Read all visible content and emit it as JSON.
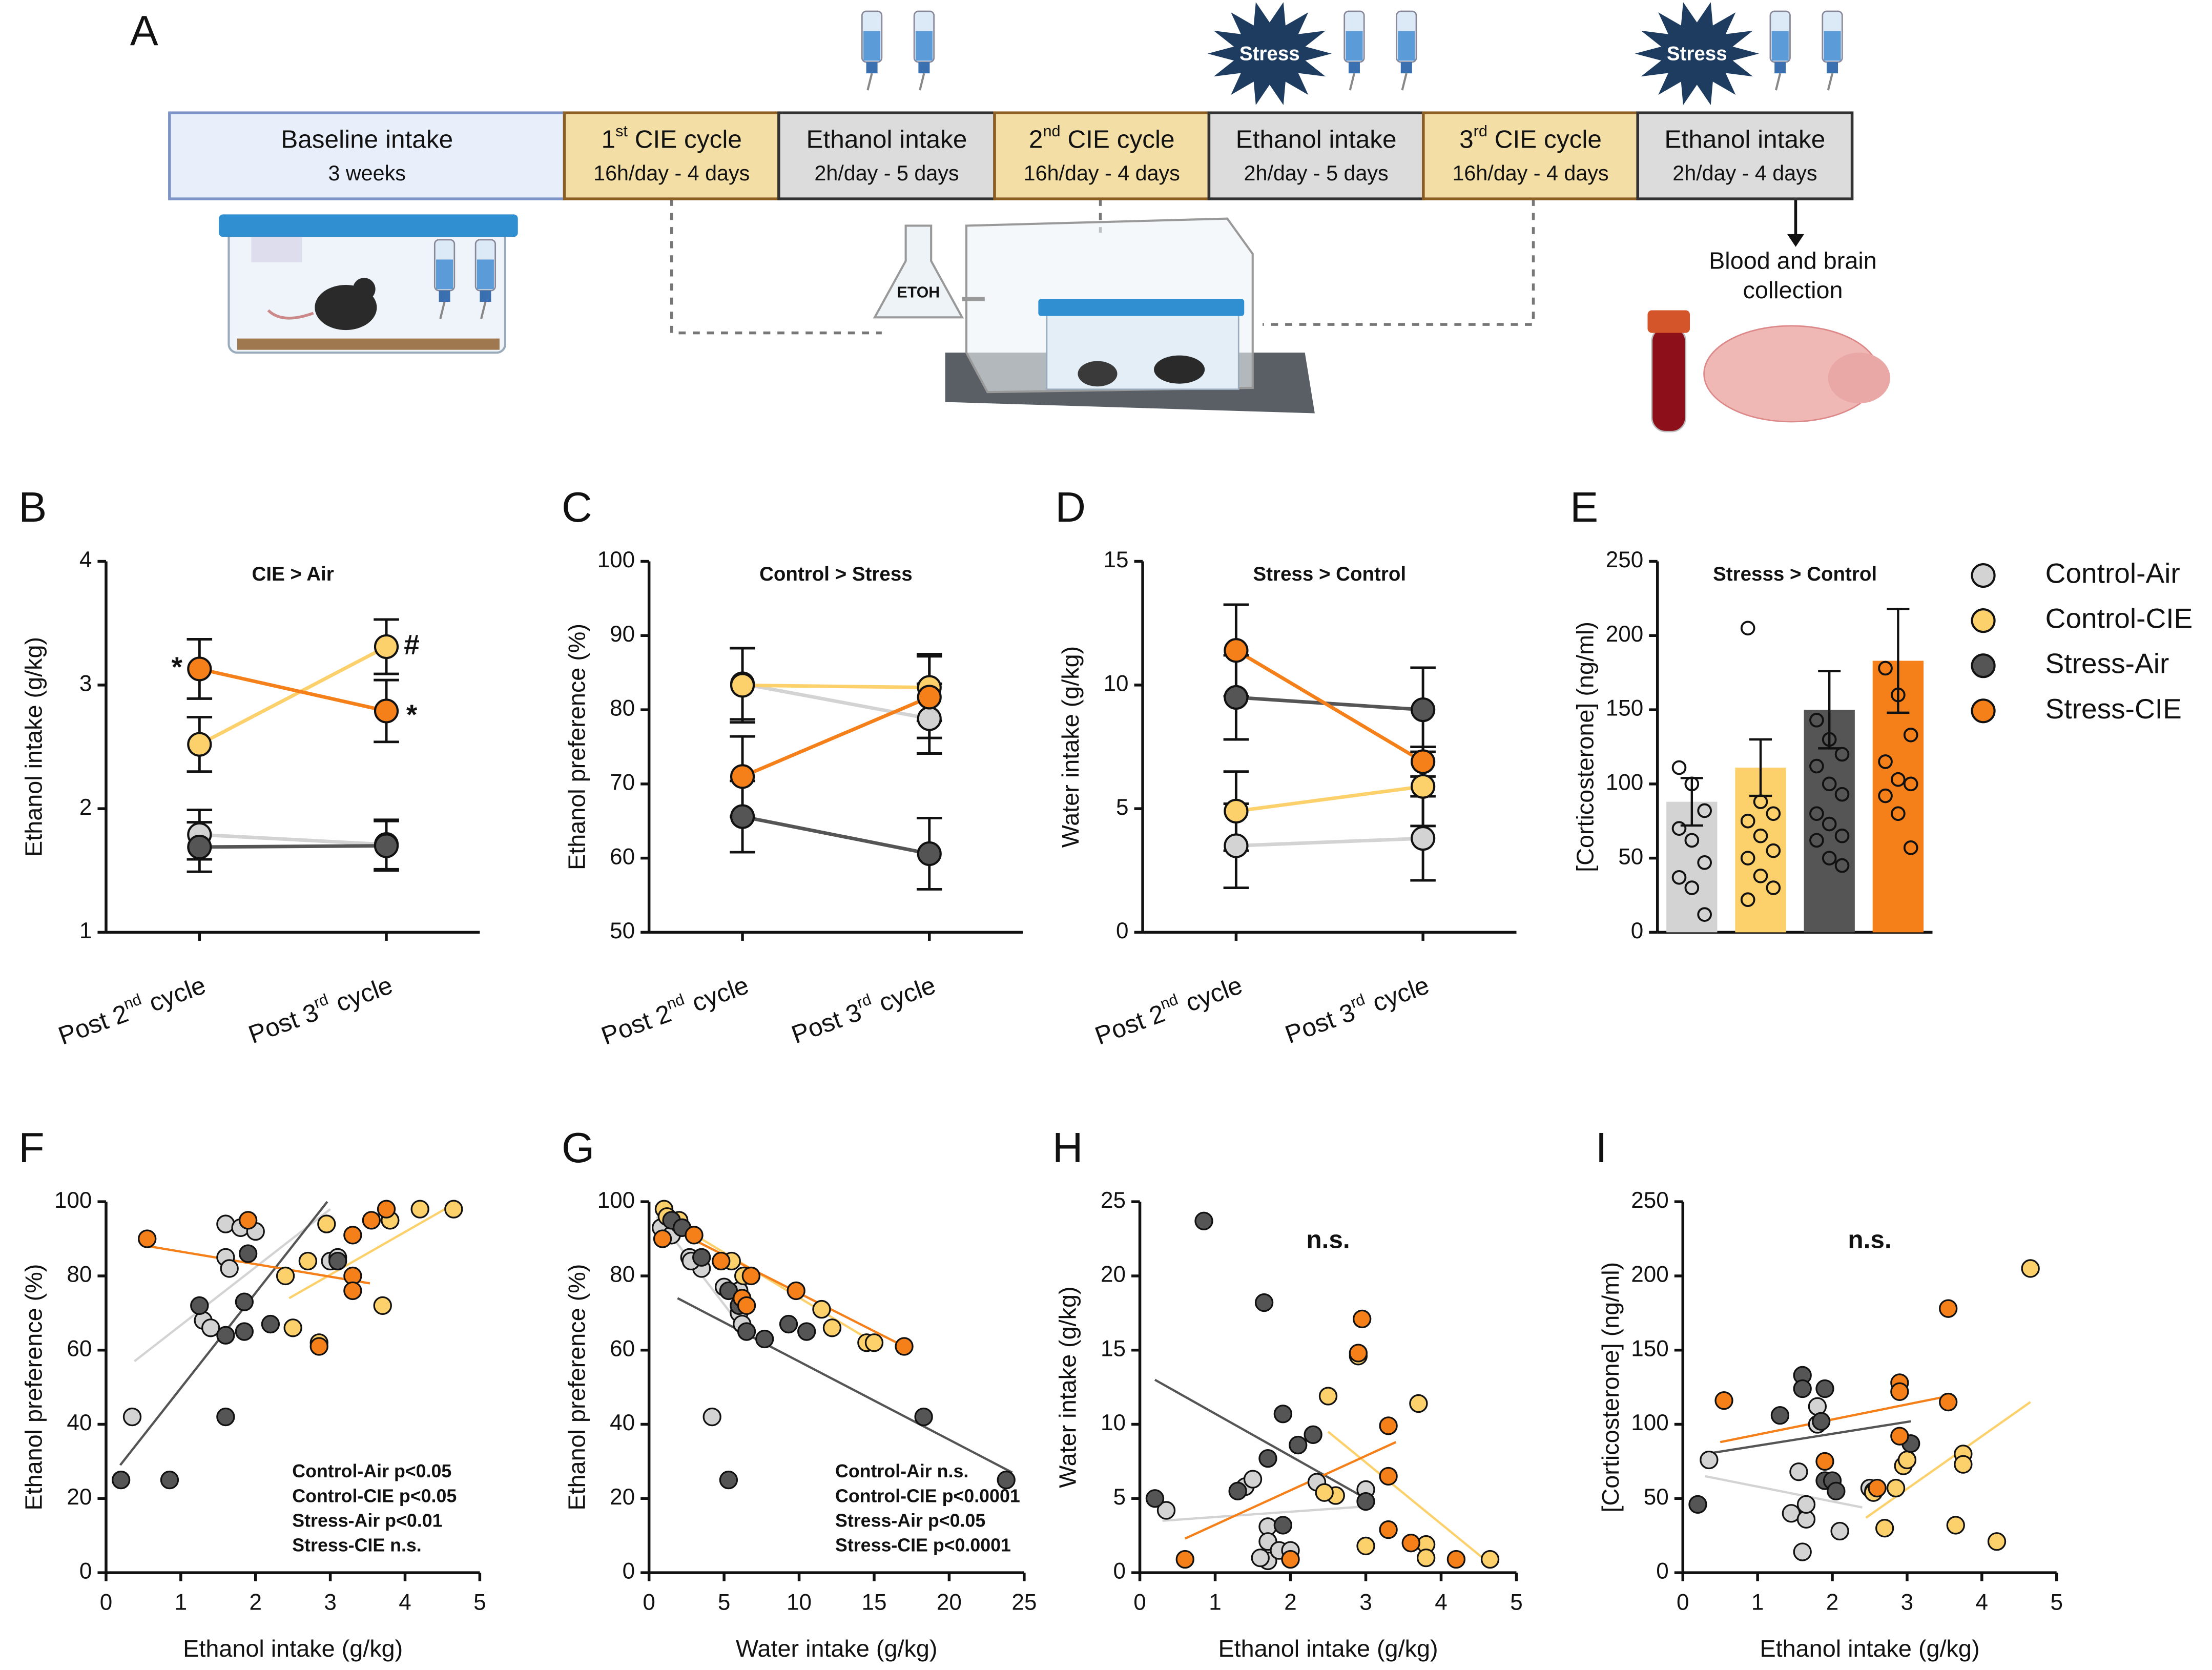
{
  "panel_a": {
    "label": "A",
    "boxes": [
      {
        "title": "Baseline intake",
        "sub": "3 weeks"
      },
      {
        "title": [
          "1",
          "st",
          " CIE cycle"
        ],
        "sub": "16h/day - 4 days"
      },
      {
        "title": "Ethanol intake",
        "sub": "2h/day - 5 days"
      },
      {
        "title": [
          "2",
          "nd",
          " CIE cycle"
        ],
        "sub": "16h/day - 4 days"
      },
      {
        "title": "Ethanol intake",
        "sub": "2h/day - 5 days"
      },
      {
        "title": [
          "3",
          "rd",
          " CIE cycle"
        ],
        "sub": "16h/day - 4 days"
      },
      {
        "title": "Ethanol intake",
        "sub": "2h/day - 4 days"
      }
    ],
    "stress": [
      "Stress",
      "Stress"
    ],
    "etoh": "ETOH",
    "collection": [
      "Blood and brain",
      "collection"
    ]
  },
  "chart_data": [
    {
      "type": "line",
      "panel": "B",
      "title": "CIE > Air",
      "ylabel": "Ethanol intake (g/kg)",
      "categories": [
        [
          "Post 2",
          "nd",
          " cycle"
        ],
        [
          "Post 3",
          "rd",
          " cycle"
        ]
      ],
      "ylim": [
        1,
        4
      ],
      "yticks": [
        1,
        2,
        3,
        4
      ],
      "annotations": [
        "*",
        "#",
        "*"
      ],
      "series": [
        {
          "name": "Control-Air",
          "color": "#d3d3d3",
          "values": [
            1.79,
            1.71
          ],
          "errors": [
            0.2,
            0.2
          ]
        },
        {
          "name": "Control-CIE",
          "color": "#fcd16c",
          "values": [
            2.52,
            3.31
          ],
          "errors": [
            0.22,
            0.22
          ]
        },
        {
          "name": "Stress-Air",
          "color": "#555555",
          "values": [
            1.69,
            1.7
          ],
          "errors": [
            0.2,
            0.2
          ]
        },
        {
          "name": "Stress-CIE",
          "color": "#f57f18",
          "values": [
            3.13,
            2.79
          ],
          "errors": [
            0.24,
            0.25
          ]
        }
      ]
    },
    {
      "type": "line",
      "panel": "C",
      "title": "Control > Stress",
      "ylabel": "Ethanol preference (%)",
      "categories": [
        [
          "Post 2",
          "nd",
          " cycle"
        ],
        [
          "Post 3",
          "rd",
          " cycle"
        ]
      ],
      "ylim": [
        50,
        100
      ],
      "yticks": [
        50,
        60,
        70,
        80,
        90,
        100
      ],
      "series": [
        {
          "name": "Control-Air",
          "color": "#d3d3d3",
          "values": [
            83.5,
            78.8
          ],
          "errors": [
            4.8,
            4.7
          ]
        },
        {
          "name": "Control-CIE",
          "color": "#fcd16c",
          "values": [
            83.3,
            83
          ],
          "errors": [
            5,
            4.5
          ]
        },
        {
          "name": "Stress-Air",
          "color": "#555555",
          "values": [
            65.6,
            60.6
          ],
          "errors": [
            4.8,
            4.8
          ]
        },
        {
          "name": "Stress-CIE",
          "color": "#f57f18",
          "values": [
            71,
            81.7
          ],
          "errors": [
            5.4,
            5.5
          ]
        }
      ]
    },
    {
      "type": "line",
      "panel": "D",
      "title": "Stress > Control",
      "ylabel": "Water intake (g/kg)",
      "categories": [
        [
          "Post 2",
          "nd",
          " cycle"
        ],
        [
          "Post 3",
          "rd",
          " cycle"
        ]
      ],
      "ylim": [
        0,
        15
      ],
      "yticks": [
        0,
        5,
        10,
        15
      ],
      "series": [
        {
          "name": "Control-Air",
          "color": "#d3d3d3",
          "values": [
            3.5,
            3.8
          ],
          "errors": [
            1.7,
            1.7
          ]
        },
        {
          "name": "Control-CIE",
          "color": "#fcd16c",
          "values": [
            4.9,
            5.9
          ],
          "errors": [
            1.6,
            1.6
          ]
        },
        {
          "name": "Stress-Air",
          "color": "#555555",
          "values": [
            9.5,
            9
          ],
          "errors": [
            1.7,
            1.7
          ]
        },
        {
          "name": "Stress-CIE",
          "color": "#f57f18",
          "values": [
            11.4,
            6.9
          ],
          "errors": [
            1.85,
            0.6
          ]
        }
      ]
    },
    {
      "type": "bar",
      "panel": "E",
      "title": "Stresss > Control",
      "ylabel": "[Corticosterone] (ng/ml)",
      "ylim": [
        0,
        250
      ],
      "yticks": [
        0,
        50,
        100,
        150,
        200,
        250
      ],
      "legend": "right",
      "series": [
        {
          "name": "Control-Air",
          "color": "#d3d3d3",
          "value": 88,
          "error": 16,
          "points": [
            111,
            100,
            82,
            70,
            62,
            47,
            37,
            30,
            12
          ]
        },
        {
          "name": "Control-CIE",
          "color": "#fcd16c",
          "value": 111,
          "error": 19,
          "points": [
            205,
            88,
            80,
            75,
            65,
            55,
            50,
            38,
            30,
            22
          ]
        },
        {
          "name": "Stress-Air",
          "color": "#555555",
          "value": 150,
          "error": 26,
          "points": [
            143,
            130,
            120,
            112,
            100,
            93,
            80,
            73,
            65,
            62,
            50,
            45
          ]
        },
        {
          "name": "Stress-CIE",
          "color": "#f57f18",
          "value": 183,
          "error": 35,
          "points": [
            178,
            160,
            133,
            115,
            103,
            100,
            92,
            80,
            57
          ]
        }
      ]
    },
    {
      "type": "scatter",
      "panel": "F",
      "xlabel": "Ethanol intake (g/kg)",
      "ylabel": "Ethanol preference (%)",
      "xlim": [
        0,
        5
      ],
      "xticks": [
        0,
        1,
        2,
        3,
        4,
        5
      ],
      "ylim": [
        0,
        100
      ],
      "yticks": [
        0,
        20,
        40,
        60,
        80,
        100
      ],
      "annotations": [
        "Control-Air  p<0.05",
        "Control-CIE p<0.05",
        "Stress-Air p<0.01",
        "Stress-CIE n.s."
      ],
      "series": [
        {
          "name": "Control-Air",
          "color": "#d3d3d3",
          "x": [
            1.6,
            1.8,
            2.0,
            1.6,
            1.65,
            1.3,
            1.4,
            3.0,
            3.1,
            0.35
          ],
          "y": [
            94,
            93,
            92,
            85,
            82,
            68,
            66,
            84,
            85,
            42
          ],
          "fit_x": [
            0.38,
            3.0
          ],
          "fit_y": [
            57,
            98
          ]
        },
        {
          "name": "Control-CIE",
          "color": "#fcd16c",
          "x": [
            2.95,
            3.8,
            4.2,
            4.65,
            2.7,
            2.4,
            2.5,
            2.85,
            3.7
          ],
          "y": [
            94,
            95,
            98,
            98,
            84,
            80,
            66,
            62,
            72
          ],
          "fit_x": [
            2.45,
            4.62
          ],
          "fit_y": [
            74,
            99
          ]
        },
        {
          "name": "Stress-Air",
          "color": "#555555",
          "x": [
            1.9,
            1.25,
            1.6,
            1.85,
            1.85,
            2.2,
            3.1,
            1.6,
            0.85,
            0.2
          ],
          "y": [
            86,
            72,
            64,
            65,
            73,
            67,
            84,
            42,
            25,
            25
          ],
          "fit_x": [
            0.19,
            2.96
          ],
          "fit_y": [
            29,
            100
          ]
        },
        {
          "name": "Stress-CIE",
          "color": "#f57f18",
          "x": [
            0.55,
            1.9,
            2.85,
            3.3,
            3.55,
            3.3,
            3.3,
            3.75
          ],
          "y": [
            90,
            95,
            61,
            91,
            95,
            80,
            76,
            98
          ],
          "fit_x": [
            0.57,
            3.53
          ],
          "fit_y": [
            88,
            78
          ]
        }
      ]
    },
    {
      "type": "scatter",
      "panel": "G",
      "xlabel": "Water intake (g/kg)",
      "ylabel": "Ethanol preference (%)",
      "xlim": [
        0,
        25
      ],
      "xticks": [
        0,
        5,
        10,
        15,
        20,
        25
      ],
      "ylim": [
        0,
        100
      ],
      "yticks": [
        0,
        20,
        40,
        60,
        80,
        100
      ],
      "annotations": [
        "Control-Air  n.s.",
        "Control-CIE p<0.0001",
        "Stress-Air p<0.05",
        "Stress-CIE p<0.0001"
      ],
      "series": [
        {
          "name": "Control-Air",
          "color": "#d3d3d3",
          "x": [
            0.8,
            1.5,
            2.0,
            2.7,
            3.5,
            5.0,
            6.0,
            6.2,
            6.0,
            4.2,
            2.8
          ],
          "y": [
            93,
            91,
            94,
            85,
            82,
            77,
            70,
            67,
            76,
            42,
            84
          ],
          "fit_x": [
            0.5,
            6.2
          ],
          "fit_y": [
            96,
            66
          ]
        },
        {
          "name": "Control-CIE",
          "color": "#fcd16c",
          "x": [
            1.0,
            1.2,
            2.0,
            5.5,
            6.3,
            11.5,
            12.2,
            14.5,
            15.0
          ],
          "y": [
            98,
            96,
            95,
            84,
            80,
            71,
            66,
            62,
            62
          ],
          "fit_x": [
            1,
            15
          ],
          "fit_y": [
            96,
            62
          ]
        },
        {
          "name": "Stress-Air",
          "color": "#555555",
          "x": [
            1.5,
            2.2,
            3.5,
            5.3,
            6.0,
            6.5,
            7.7,
            9.3,
            10.5,
            18.3,
            23.8,
            5.3
          ],
          "y": [
            95,
            93,
            85,
            76,
            72,
            65,
            63,
            67,
            65,
            42,
            25,
            25
          ],
          "fit_x": [
            1.9,
            24.2
          ],
          "fit_y": [
            74,
            27
          ]
        },
        {
          "name": "Stress-CIE",
          "color": "#f57f18",
          "x": [
            0.9,
            3.0,
            4.8,
            6.2,
            6.5,
            6.8,
            9.8,
            17
          ],
          "y": [
            90,
            91,
            84,
            74,
            72,
            80,
            76,
            61
          ],
          "fit_x": [
            0.9,
            17
          ],
          "fit_y": [
            94,
            61
          ]
        }
      ]
    },
    {
      "type": "scatter",
      "panel": "H",
      "title": "n.s.",
      "xlabel": "Ethanol intake (g/kg)",
      "ylabel": "Water intake (g/kg)",
      "xlim": [
        0,
        5
      ],
      "xticks": [
        0,
        1,
        2,
        3,
        4,
        5
      ],
      "ylim": [
        0,
        25
      ],
      "yticks": [
        0,
        5,
        10,
        15,
        20,
        25
      ],
      "series": [
        {
          "name": "Control-Air",
          "color": "#d3d3d3",
          "x": [
            0.35,
            1.4,
            1.5,
            1.7,
            1.7,
            1.7,
            1.85,
            2.0,
            2.35,
            3.0,
            1.6
          ],
          "y": [
            4.2,
            5.8,
            6.3,
            3.1,
            2.1,
            0.8,
            1.5,
            1.5,
            6.1,
            5.6,
            1.0
          ],
          "fit_x": [
            0.3,
            3.1
          ],
          "fit_y": [
            3.5,
            4.5
          ]
        },
        {
          "name": "Control-CIE",
          "color": "#fcd16c",
          "x": [
            2.5,
            2.9,
            2.6,
            3.0,
            3.7,
            3.8,
            3.8,
            4.65,
            2.45
          ],
          "y": [
            11.9,
            14.6,
            5.2,
            1.8,
            11.4,
            1.9,
            1.0,
            0.9,
            5.4
          ],
          "fit_x": [
            2.5,
            4.6
          ],
          "fit_y": [
            9.5,
            0.8
          ]
        },
        {
          "name": "Stress-Air",
          "color": "#555555",
          "x": [
            0.85,
            1.65,
            0.2,
            1.3,
            1.7,
            1.9,
            1.9,
            2.1,
            2.3,
            3.0
          ],
          "y": [
            23.7,
            18.2,
            5.0,
            5.5,
            7.7,
            3.2,
            10.7,
            8.6,
            9.3,
            4.8
          ],
          "fit_x": [
            0.2,
            3.0
          ],
          "fit_y": [
            13,
            5
          ]
        },
        {
          "name": "Stress-CIE",
          "color": "#f57f18",
          "x": [
            0.6,
            2.0,
            2.95,
            2.9,
            3.3,
            3.3,
            3.3,
            3.6,
            4.2
          ],
          "y": [
            0.9,
            0.9,
            17.1,
            14.8,
            9.9,
            6.5,
            2.9,
            2.0,
            0.9
          ],
          "fit_x": [
            0.6,
            3.4
          ],
          "fit_y": [
            2.3,
            8.8
          ]
        }
      ]
    },
    {
      "type": "scatter",
      "panel": "I",
      "title": "n.s.",
      "xlabel": "Ethanol intake (g/kg)",
      "ylabel": "[Corticosterone] (ng/ml)",
      "xlim": [
        0,
        5
      ],
      "xticks": [
        0,
        1,
        2,
        3,
        4,
        5
      ],
      "ylim": [
        0,
        250
      ],
      "yticks": [
        0,
        50,
        100,
        150,
        200,
        250
      ],
      "series": [
        {
          "name": "Control-Air",
          "color": "#d3d3d3",
          "x": [
            0.35,
            1.8,
            1.8,
            1.55,
            1.45,
            1.65,
            1.65,
            1.6,
            2.1,
            2.5,
            2.55
          ],
          "y": [
            76,
            112,
            100,
            68,
            40,
            36,
            46,
            14,
            28,
            57,
            55
          ],
          "fit_x": [
            0.3,
            2.4
          ],
          "fit_y": [
            65,
            44
          ]
        },
        {
          "name": "Control-CIE",
          "color": "#fcd16c",
          "x": [
            2.55,
            2.7,
            2.85,
            2.95,
            3.0,
            3.65,
            3.75,
            3.75,
            4.2,
            4.65
          ],
          "y": [
            54,
            30,
            57,
            72,
            76,
            32,
            80,
            73,
            21,
            205
          ],
          "fit_x": [
            2.45,
            4.65
          ],
          "fit_y": [
            37,
            115
          ]
        },
        {
          "name": "Stress-Air",
          "color": "#555555",
          "x": [
            0.2,
            1.6,
            1.6,
            1.9,
            1.3,
            1.85,
            1.9,
            2.0,
            2.05,
            3.05
          ],
          "y": [
            46,
            133,
            124,
            124,
            106,
            102,
            62,
            62,
            55,
            87
          ],
          "fit_x": [
            0.3,
            3.05
          ],
          "fit_y": [
            80,
            102
          ]
        },
        {
          "name": "Stress-CIE",
          "color": "#f57f18",
          "x": [
            0.55,
            1.9,
            2.9,
            2.9,
            2.9,
            3.55,
            2.6,
            3.55
          ],
          "y": [
            116,
            75,
            128,
            122,
            92,
            178,
            57,
            115
          ],
          "fit_x": [
            0.5,
            3.55
          ],
          "fit_y": [
            88,
            119
          ]
        }
      ]
    }
  ]
}
